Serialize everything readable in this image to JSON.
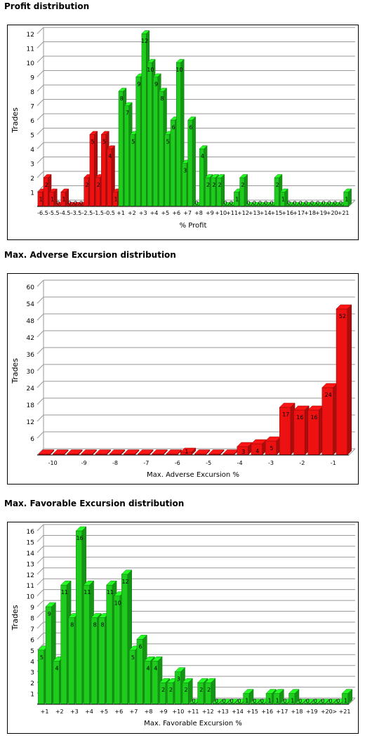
{
  "sections": [
    {
      "title": "Profit distribution"
    },
    {
      "title": "Max. Adverse Excursion distribution"
    },
    {
      "title": "Max. Favorable Excursion distribution"
    }
  ],
  "colors": {
    "loss_bar": "#ee1111",
    "profit_bar": "#1dcc1d",
    "grid": "#999999",
    "axis": "#000000"
  },
  "chart_data": [
    {
      "type": "bar",
      "title": "Profit distribution",
      "xlabel": "% Profit",
      "ylabel": "Trades",
      "ylim": [
        0,
        12
      ],
      "yticks": [
        1,
        2,
        3,
        4,
        5,
        6,
        7,
        8,
        9,
        10,
        11,
        12
      ],
      "grid": true,
      "xtick_labels": [
        "-6.5",
        "-5.5",
        "-4.5",
        "-3.5",
        "-2.5",
        "-1.5",
        "-0.5",
        "+1",
        "+2",
        "+3",
        "+4",
        "+5",
        "+6",
        "+7",
        "+8",
        "+9",
        "+10",
        "+11",
        "+12",
        "+13",
        "+14",
        "+15",
        "+16",
        "+17",
        "+18",
        "+19",
        "+20",
        "+21"
      ],
      "values": [
        1,
        2,
        1,
        0,
        1,
        0,
        0,
        0,
        2,
        5,
        2,
        5,
        4,
        1,
        8,
        7,
        5,
        9,
        12,
        10,
        9,
        8,
        5,
        6,
        10,
        3,
        6,
        0,
        4,
        2,
        2,
        2,
        0,
        0,
        1,
        2,
        0,
        0,
        0,
        0,
        0,
        2,
        1,
        0,
        0,
        0,
        0,
        0,
        0,
        0,
        0,
        0,
        0,
        1
      ],
      "categories_count": 54,
      "negative_count": 14
    },
    {
      "type": "bar",
      "title": "Max. Adverse Excursion distribution",
      "xlabel": "Max. Adverse Excursion %",
      "ylabel": "Trades",
      "ylim": [
        0,
        60
      ],
      "yticks": [
        6,
        12,
        18,
        24,
        30,
        36,
        42,
        48,
        54,
        60
      ],
      "grid": true,
      "xtick_labels": [
        "-10",
        "-9",
        "-8",
        "-7",
        "-6",
        "-5",
        "-4",
        "-3",
        "-2",
        "-1"
      ],
      "values": [
        0,
        0,
        0,
        0,
        0,
        0,
        0,
        0,
        0,
        0,
        1,
        0,
        0,
        0,
        3,
        4,
        5,
        17,
        16,
        16,
        24,
        52
      ],
      "categories_count": 22,
      "negative_count": 22
    },
    {
      "type": "bar",
      "title": "Max. Favorable Excursion distribution",
      "xlabel": "Max. Favorable Excursion %",
      "ylabel": "Trades",
      "ylim": [
        0,
        16
      ],
      "yticks": [
        1,
        2,
        3,
        4,
        5,
        6,
        7,
        8,
        9,
        10,
        11,
        12,
        13,
        14,
        15,
        16
      ],
      "grid": true,
      "xtick_labels": [
        "+1",
        "+2",
        "+3",
        "+4",
        "+5",
        "+6",
        "+7",
        "+8",
        "+9",
        "+10",
        "+11",
        "+12",
        "+13",
        "+14",
        "+15",
        "+16",
        "+17",
        "+18",
        "+19",
        "+20",
        "> +21"
      ],
      "values": [
        5,
        9,
        4,
        11,
        8,
        16,
        11,
        8,
        8,
        11,
        10,
        12,
        5,
        6,
        4,
        4,
        2,
        2,
        3,
        2,
        0,
        2,
        2,
        0,
        0,
        0,
        0,
        1,
        0,
        0,
        1,
        1,
        0,
        1,
        0,
        0,
        0,
        0,
        0,
        0,
        1
      ],
      "categories_count": 41,
      "negative_count": 0
    }
  ]
}
